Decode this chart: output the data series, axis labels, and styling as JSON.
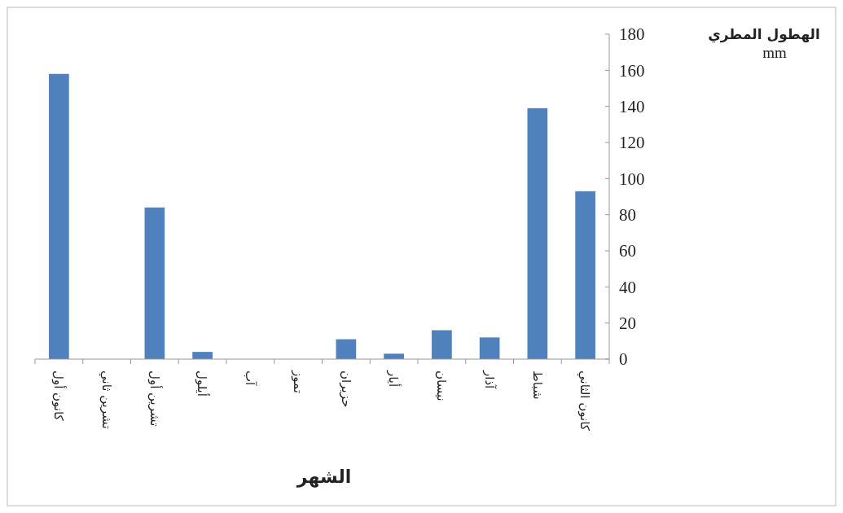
{
  "chart_data": {
    "type": "bar",
    "xlabel": "الشهر",
    "ylabel": "الهطول المطري mm",
    "categories": [
      "كانون أول",
      "تشرين ثاني",
      "تشرين أول",
      "أيلول",
      "آب",
      "تموز",
      "حزيران",
      "أيار",
      "نيسان",
      "آذار",
      "شباط",
      "كانون الثاني"
    ],
    "values": [
      158,
      0,
      84,
      4,
      0,
      0,
      11,
      3,
      16,
      12,
      139,
      93
    ],
    "color": "#4f81bd",
    "ylim": [
      0,
      180
    ],
    "yticks": [
      0,
      20,
      40,
      60,
      80,
      100,
      120,
      140,
      160,
      180
    ],
    "grid": false
  }
}
